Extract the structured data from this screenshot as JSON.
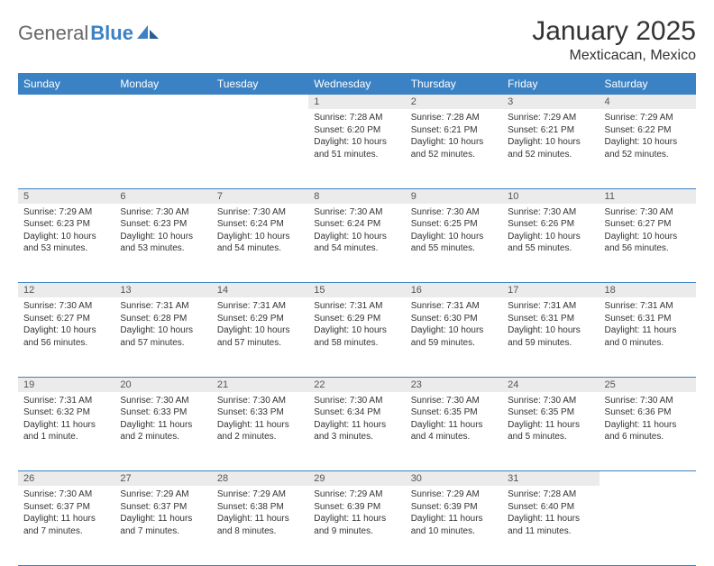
{
  "brand": {
    "part1": "General",
    "part2": "Blue"
  },
  "title": "January 2025",
  "location": "Mexticacan, Mexico",
  "colors": {
    "header_bg": "#3b82c4",
    "header_text": "#ffffff",
    "daynum_bg": "#ebebeb",
    "text": "#333333",
    "logo_gray": "#666666",
    "logo_blue": "#3b82c4",
    "row_divider": "#3b82c4",
    "page_bg": "#ffffff"
  },
  "typography": {
    "title_fontsize": 30,
    "location_fontsize": 16,
    "dayheader_fontsize": 12,
    "daynum_fontsize": 11,
    "body_fontsize": 10
  },
  "day_headers": [
    "Sunday",
    "Monday",
    "Tuesday",
    "Wednesday",
    "Thursday",
    "Friday",
    "Saturday"
  ],
  "weeks": [
    [
      null,
      null,
      null,
      {
        "n": "1",
        "sr": "7:28 AM",
        "ss": "6:20 PM",
        "dl": "10 hours and 51 minutes."
      },
      {
        "n": "2",
        "sr": "7:28 AM",
        "ss": "6:21 PM",
        "dl": "10 hours and 52 minutes."
      },
      {
        "n": "3",
        "sr": "7:29 AM",
        "ss": "6:21 PM",
        "dl": "10 hours and 52 minutes."
      },
      {
        "n": "4",
        "sr": "7:29 AM",
        "ss": "6:22 PM",
        "dl": "10 hours and 52 minutes."
      }
    ],
    [
      {
        "n": "5",
        "sr": "7:29 AM",
        "ss": "6:23 PM",
        "dl": "10 hours and 53 minutes."
      },
      {
        "n": "6",
        "sr": "7:30 AM",
        "ss": "6:23 PM",
        "dl": "10 hours and 53 minutes."
      },
      {
        "n": "7",
        "sr": "7:30 AM",
        "ss": "6:24 PM",
        "dl": "10 hours and 54 minutes."
      },
      {
        "n": "8",
        "sr": "7:30 AM",
        "ss": "6:24 PM",
        "dl": "10 hours and 54 minutes."
      },
      {
        "n": "9",
        "sr": "7:30 AM",
        "ss": "6:25 PM",
        "dl": "10 hours and 55 minutes."
      },
      {
        "n": "10",
        "sr": "7:30 AM",
        "ss": "6:26 PM",
        "dl": "10 hours and 55 minutes."
      },
      {
        "n": "11",
        "sr": "7:30 AM",
        "ss": "6:27 PM",
        "dl": "10 hours and 56 minutes."
      }
    ],
    [
      {
        "n": "12",
        "sr": "7:30 AM",
        "ss": "6:27 PM",
        "dl": "10 hours and 56 minutes."
      },
      {
        "n": "13",
        "sr": "7:31 AM",
        "ss": "6:28 PM",
        "dl": "10 hours and 57 minutes."
      },
      {
        "n": "14",
        "sr": "7:31 AM",
        "ss": "6:29 PM",
        "dl": "10 hours and 57 minutes."
      },
      {
        "n": "15",
        "sr": "7:31 AM",
        "ss": "6:29 PM",
        "dl": "10 hours and 58 minutes."
      },
      {
        "n": "16",
        "sr": "7:31 AM",
        "ss": "6:30 PM",
        "dl": "10 hours and 59 minutes."
      },
      {
        "n": "17",
        "sr": "7:31 AM",
        "ss": "6:31 PM",
        "dl": "10 hours and 59 minutes."
      },
      {
        "n": "18",
        "sr": "7:31 AM",
        "ss": "6:31 PM",
        "dl": "11 hours and 0 minutes."
      }
    ],
    [
      {
        "n": "19",
        "sr": "7:31 AM",
        "ss": "6:32 PM",
        "dl": "11 hours and 1 minute."
      },
      {
        "n": "20",
        "sr": "7:30 AM",
        "ss": "6:33 PM",
        "dl": "11 hours and 2 minutes."
      },
      {
        "n": "21",
        "sr": "7:30 AM",
        "ss": "6:33 PM",
        "dl": "11 hours and 2 minutes."
      },
      {
        "n": "22",
        "sr": "7:30 AM",
        "ss": "6:34 PM",
        "dl": "11 hours and 3 minutes."
      },
      {
        "n": "23",
        "sr": "7:30 AM",
        "ss": "6:35 PM",
        "dl": "11 hours and 4 minutes."
      },
      {
        "n": "24",
        "sr": "7:30 AM",
        "ss": "6:35 PM",
        "dl": "11 hours and 5 minutes."
      },
      {
        "n": "25",
        "sr": "7:30 AM",
        "ss": "6:36 PM",
        "dl": "11 hours and 6 minutes."
      }
    ],
    [
      {
        "n": "26",
        "sr": "7:30 AM",
        "ss": "6:37 PM",
        "dl": "11 hours and 7 minutes."
      },
      {
        "n": "27",
        "sr": "7:29 AM",
        "ss": "6:37 PM",
        "dl": "11 hours and 7 minutes."
      },
      {
        "n": "28",
        "sr": "7:29 AM",
        "ss": "6:38 PM",
        "dl": "11 hours and 8 minutes."
      },
      {
        "n": "29",
        "sr": "7:29 AM",
        "ss": "6:39 PM",
        "dl": "11 hours and 9 minutes."
      },
      {
        "n": "30",
        "sr": "7:29 AM",
        "ss": "6:39 PM",
        "dl": "11 hours and 10 minutes."
      },
      {
        "n": "31",
        "sr": "7:28 AM",
        "ss": "6:40 PM",
        "dl": "11 hours and 11 minutes."
      },
      null
    ]
  ],
  "labels": {
    "sunrise": "Sunrise:",
    "sunset": "Sunset:",
    "daylight": "Daylight:"
  }
}
